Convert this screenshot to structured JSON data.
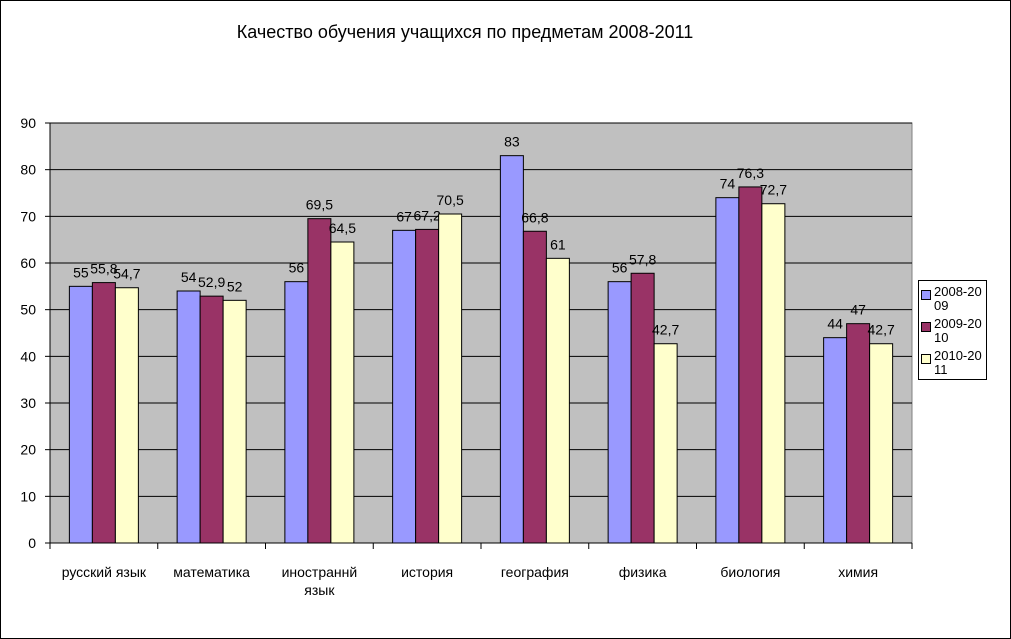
{
  "chart_data": {
    "type": "bar",
    "title": "Качество обучения учащихся по предметам 2008-2011",
    "categories": [
      "русский язык",
      "математика",
      "иностраннй язык",
      "история",
      "география",
      "физика",
      "биология",
      "химия"
    ],
    "series": [
      {
        "name": "2008-2009",
        "color": "#9999ff",
        "values": [
          55,
          54,
          56,
          67,
          83,
          56,
          74,
          44
        ],
        "labels": [
          "55",
          "54",
          "56",
          "67",
          "83",
          "56",
          "74",
          "44"
        ]
      },
      {
        "name": "2009-2010",
        "color": "#993366",
        "values": [
          55.8,
          52.9,
          69.5,
          67.2,
          66.8,
          57.8,
          76.3,
          47
        ],
        "labels": [
          "55,8",
          "52,9",
          "69,5",
          "67,2",
          "66,8",
          "57,8",
          "76,3",
          "47"
        ]
      },
      {
        "name": "2010-2011",
        "color": "#ffffcc",
        "values": [
          54.7,
          52,
          64.5,
          70.5,
          61,
          42.7,
          72.7,
          42.7
        ],
        "labels": [
          "54,7",
          "52",
          "64,5",
          "70,5",
          "61",
          "42,7",
          "72,7",
          "42,7"
        ]
      }
    ],
    "ylim": [
      0,
      90
    ],
    "yticks": [
      0,
      10,
      20,
      30,
      40,
      50,
      60,
      70,
      80,
      90
    ],
    "grid": true,
    "plot_background": "#c0c0c0",
    "legend_position": "right"
  }
}
